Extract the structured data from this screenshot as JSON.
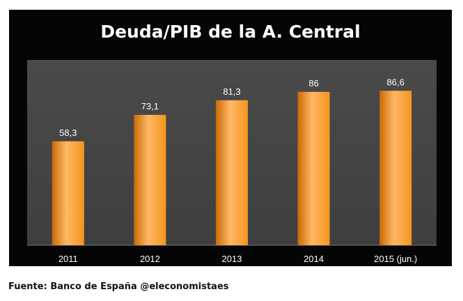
{
  "chart_data": {
    "type": "bar",
    "title": "Deuda/PIB de la A. Central",
    "categories": [
      "2011",
      "2012",
      "2013",
      "2014",
      "2015 (jun.)"
    ],
    "values": [
      58.3,
      73.1,
      81.3,
      86,
      86.6
    ],
    "value_labels": [
      "58,3",
      "73,1",
      "81,3",
      "86",
      "86,6"
    ],
    "xlabel": "",
    "ylabel": "",
    "ylim": [
      0,
      100
    ],
    "grid": false,
    "legend": "none",
    "colors": {
      "bar": "#f4951c",
      "bar_light": "#ffb866",
      "plot_bg": "#3f3f3f",
      "frame_bg": "#050505",
      "text": "#ffffff"
    }
  },
  "footer": {
    "source": "Fuente: Banco de España @eleconomistaes"
  }
}
